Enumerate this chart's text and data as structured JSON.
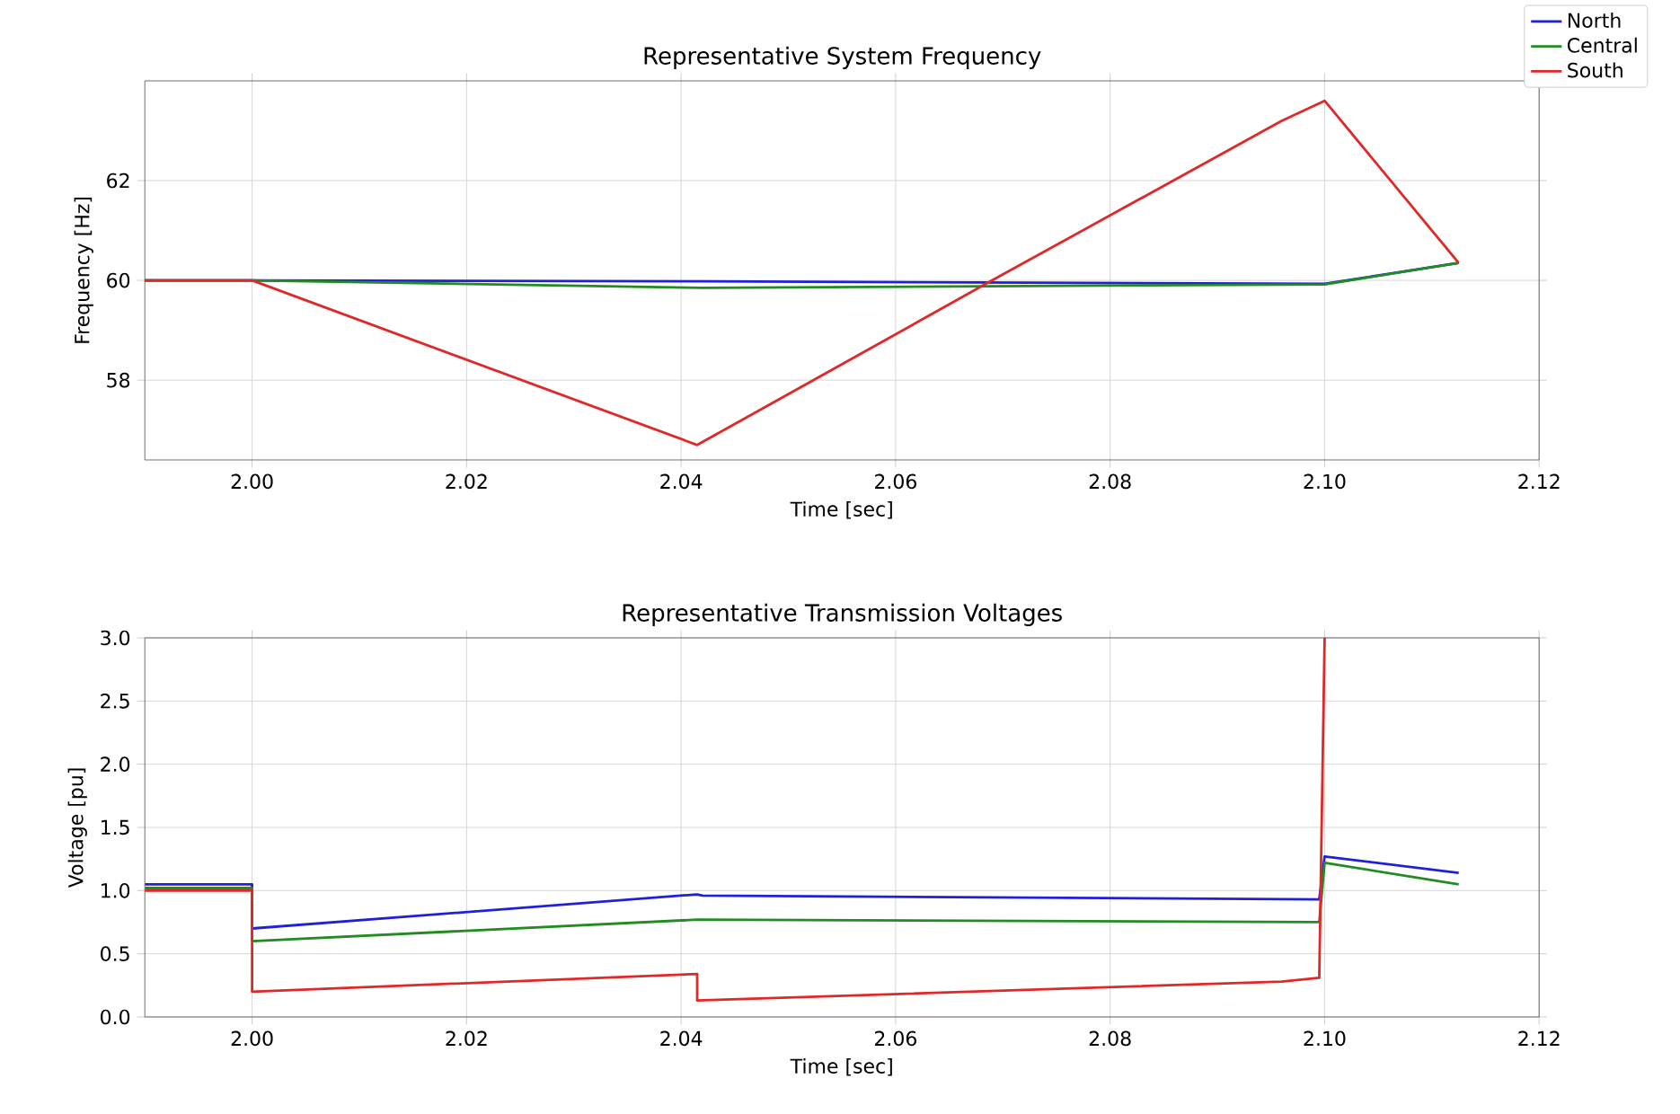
{
  "chart_data": [
    {
      "type": "line",
      "title": "Representative System Frequency",
      "xlabel": "Time [sec]",
      "ylabel": "Frequency [Hz]",
      "xlim": [
        1.99,
        2.12
      ],
      "xticks": [
        {
          "value": 2.0,
          "label": "2.00"
        },
        {
          "value": 2.02,
          "label": "2.02"
        },
        {
          "value": 2.04,
          "label": "2.04"
        },
        {
          "value": 2.06,
          "label": "2.06"
        },
        {
          "value": 2.08,
          "label": "2.08"
        },
        {
          "value": 2.1,
          "label": "2.10"
        },
        {
          "value": 2.12,
          "label": "2.12"
        }
      ],
      "ylim": [
        56.4,
        64.0
      ],
      "yticks": [
        58,
        60,
        62
      ],
      "grid": true,
      "legend": "top right",
      "series": [
        {
          "name": "North",
          "color": "#2020d8",
          "x": [
            1.99,
            2.0,
            2.042,
            2.1,
            2.1125
          ],
          "values": [
            60.0,
            60.0,
            59.98,
            59.93,
            60.35
          ]
        },
        {
          "name": "Central",
          "color": "#228b22",
          "x": [
            1.99,
            2.0,
            2.042,
            2.1,
            2.1125
          ],
          "values": [
            60.0,
            60.0,
            59.85,
            59.92,
            60.35
          ]
        },
        {
          "name": "South",
          "color": "#e02828",
          "x": [
            1.99,
            2.0,
            2.0415,
            2.069,
            2.096,
            2.1,
            2.1125
          ],
          "values": [
            60.0,
            60.0,
            56.7,
            60.0,
            63.2,
            63.6,
            60.35
          ]
        }
      ]
    },
    {
      "type": "line",
      "title": "Representative Transmission Voltages",
      "xlabel": "Time [sec]",
      "ylabel": "Voltage [pu]",
      "xlim": [
        1.99,
        2.12
      ],
      "xticks": [
        {
          "value": 2.0,
          "label": "2.00"
        },
        {
          "value": 2.02,
          "label": "2.02"
        },
        {
          "value": 2.04,
          "label": "2.04"
        },
        {
          "value": 2.06,
          "label": "2.06"
        },
        {
          "value": 2.08,
          "label": "2.08"
        },
        {
          "value": 2.1,
          "label": "2.10"
        },
        {
          "value": 2.12,
          "label": "2.12"
        }
      ],
      "ylim": [
        0,
        3.0
      ],
      "yticks": [
        {
          "value": 0,
          "label": "0.0"
        },
        {
          "value": 0.5,
          "label": "0.5"
        },
        {
          "value": 1.0,
          "label": "1.0"
        },
        {
          "value": 1.5,
          "label": "1.5"
        },
        {
          "value": 2.0,
          "label": "2.0"
        },
        {
          "value": 2.5,
          "label": "2.5"
        },
        {
          "value": 3.0,
          "label": "3.0"
        }
      ],
      "grid": true,
      "series": [
        {
          "color": "#2020d8",
          "x": [
            1.99,
            2.0,
            2.0,
            2.0415,
            2.042,
            2.0995,
            2.1,
            2.1125
          ],
          "values": [
            1.05,
            1.05,
            0.7,
            0.97,
            0.96,
            0.93,
            1.27,
            1.14
          ]
        },
        {
          "color": "#228b22",
          "x": [
            1.99,
            2.0,
            2.0,
            2.0415,
            2.0995,
            2.1,
            2.1125
          ],
          "values": [
            1.02,
            1.02,
            0.6,
            0.77,
            0.75,
            1.22,
            1.05
          ]
        },
        {
          "color": "#e02828",
          "x": [
            1.99,
            2.0,
            2.0,
            2.0415,
            2.0415,
            2.096,
            2.0995,
            2.1
          ],
          "values": [
            1.0,
            1.0,
            0.2,
            0.34,
            0.13,
            0.28,
            0.31,
            3.0
          ]
        }
      ]
    }
  ]
}
